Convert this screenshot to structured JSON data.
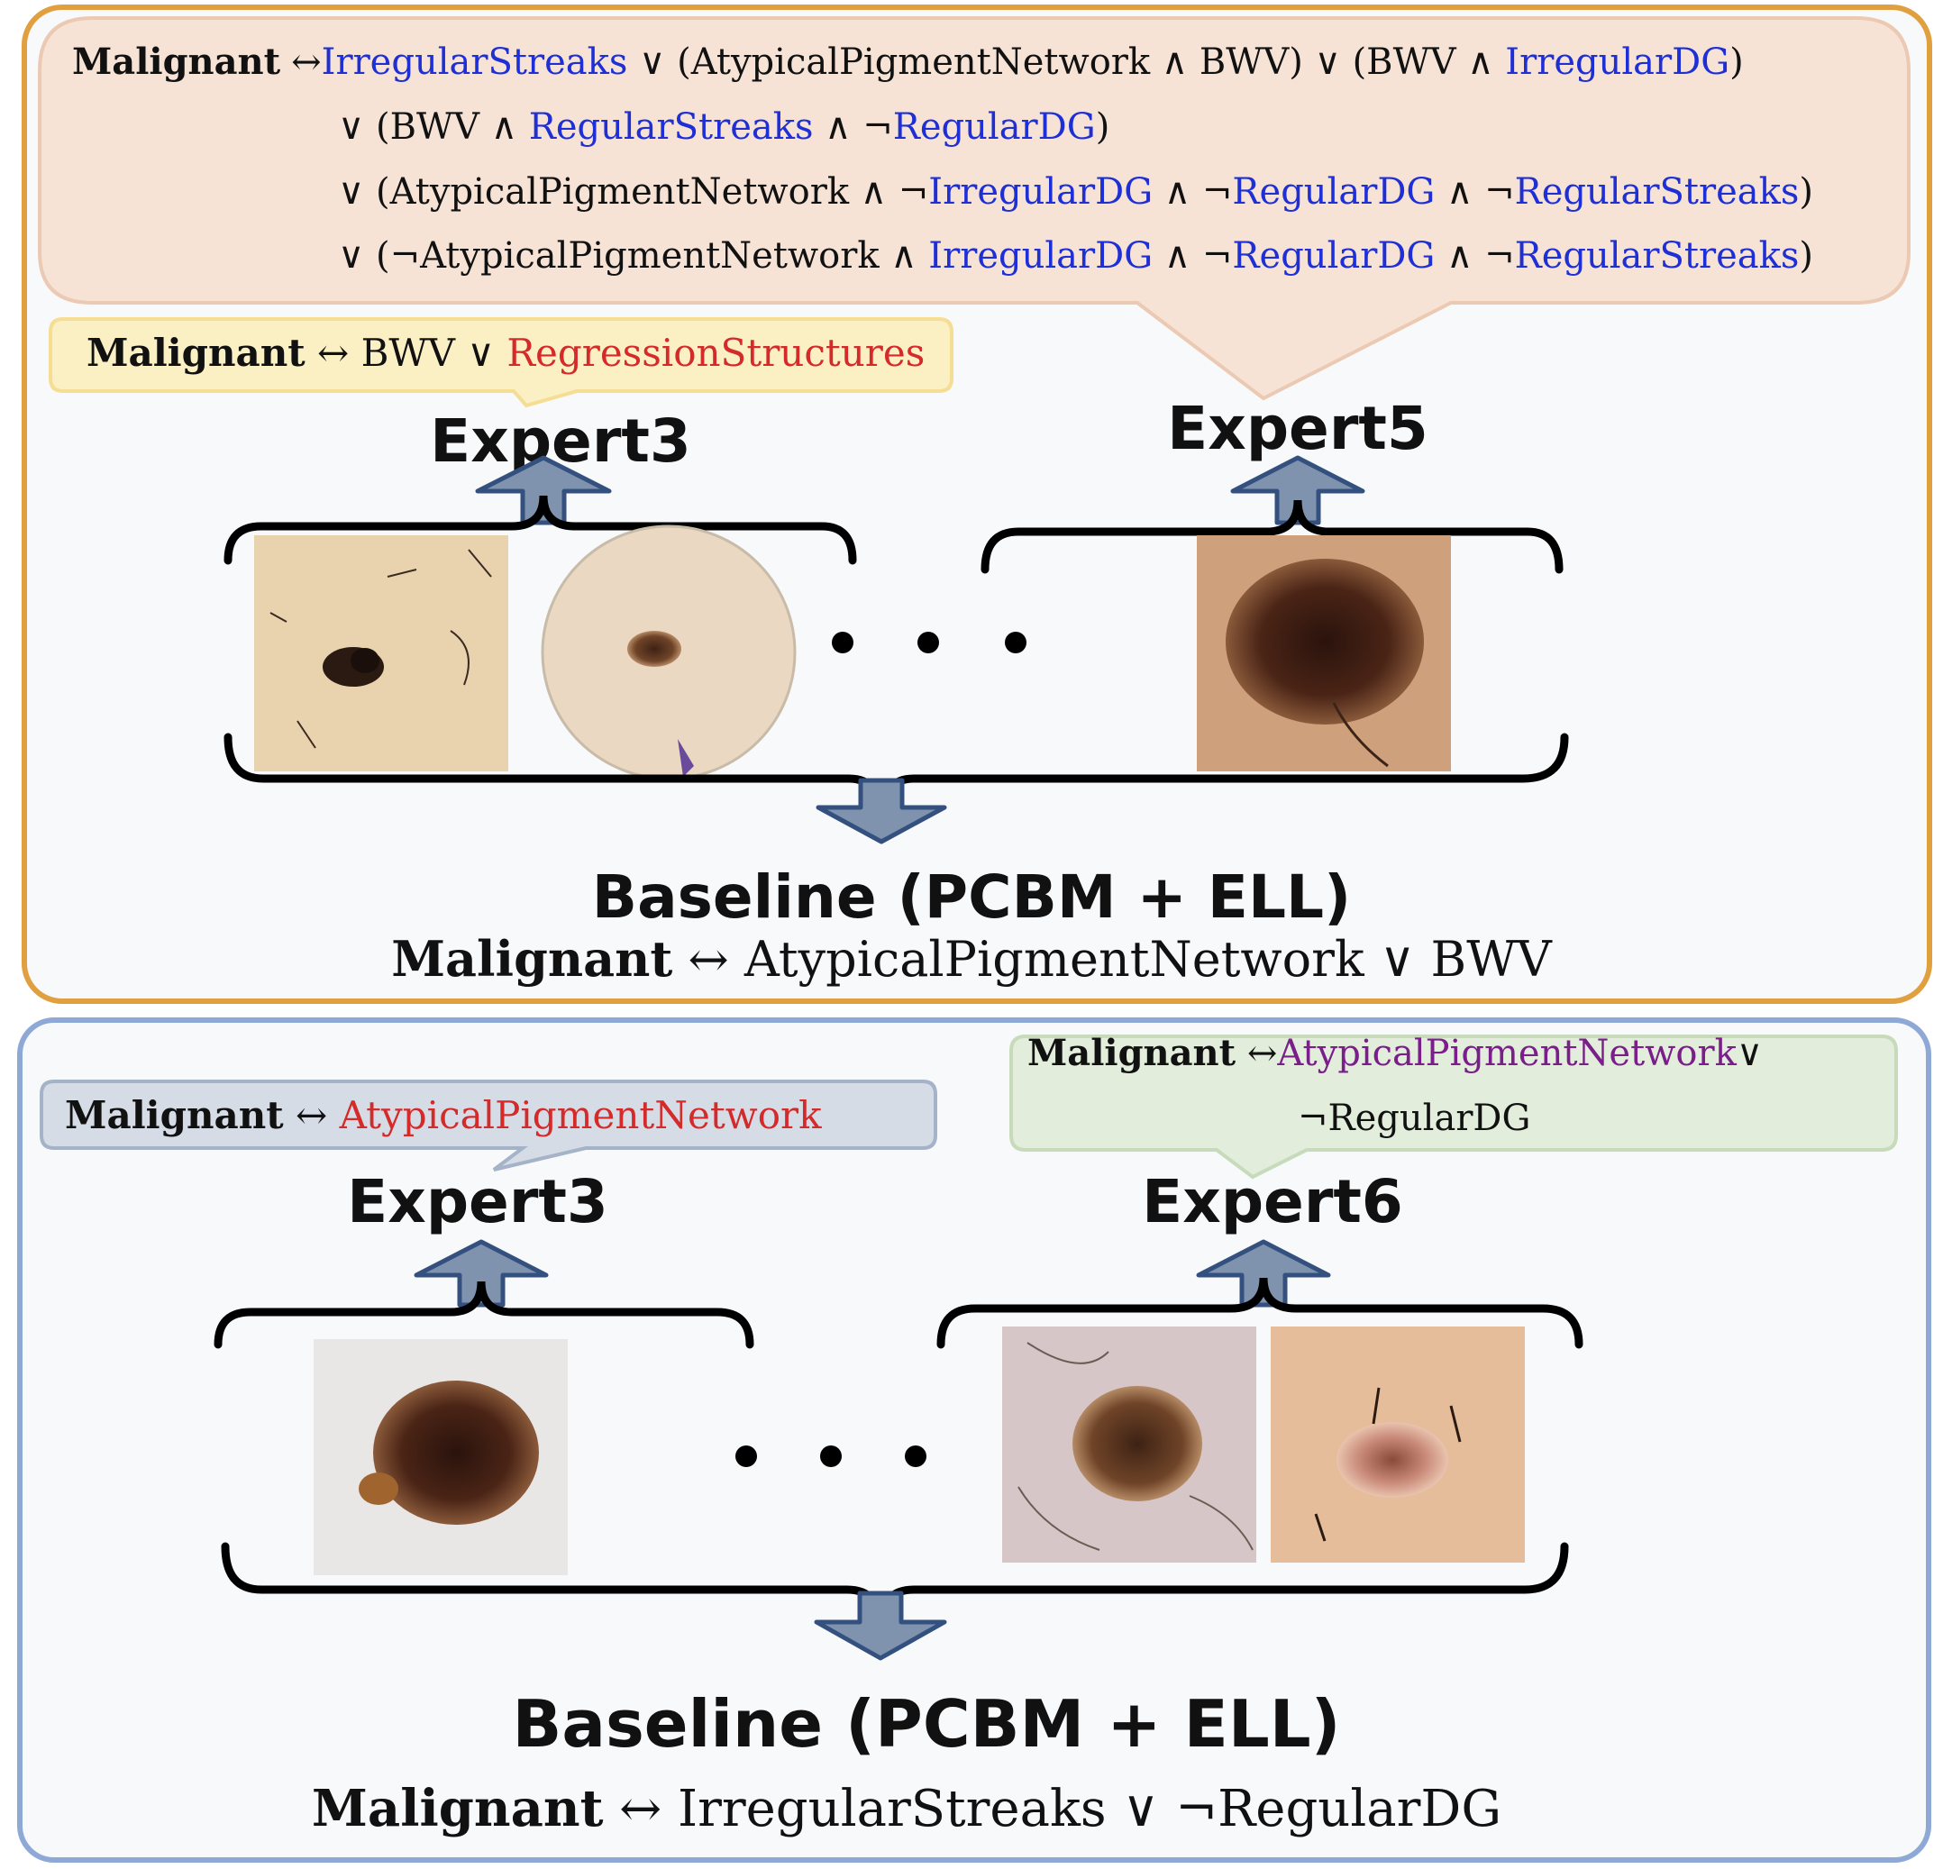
{
  "colors": {
    "top_panel_border": "#e0a040",
    "bottom_panel_border": "#8fa9d6",
    "panel_fill": "#f8f9fb",
    "expert5_bubble": "#f6e3d6",
    "expert3_top_bubble": "#fbefc4",
    "expert3_bottom_bubble": "#d6dce6",
    "expert6_bubble": "#e2eddc",
    "arrow_fill": "#7f93ae",
    "arrow_stroke": "#34507f",
    "concept_blue": "#1f2fd6",
    "concept_red": "#d42a2a",
    "concept_purple": "#7a1f8a"
  },
  "top": {
    "expert5_rule": {
      "line1": {
        "malignant": "Malignant",
        "iff": "↔",
        "c1": "IrregularStreaks",
        "t1": " ∨ (AtypicalPigmentNetwork ∧ BWV) ∨ (BWV ∧ ",
        "c2": "IrregularDG",
        "t2": ")"
      },
      "line2": {
        "t1": "∨ (BWV ∧ ",
        "c1": "RegularStreaks",
        "t2": " ∧ ¬",
        "c2": "RegularDG",
        "t3": ")"
      },
      "line3": {
        "t1": "∨ (AtypicalPigmentNetwork ∧ ¬",
        "c1": "IrregularDG",
        "t2": " ∧ ¬",
        "c2": "RegularDG",
        "t3": " ∧ ¬",
        "c3": "RegularStreaks",
        "t4": ")"
      },
      "line4": {
        "t1": "∨ (¬AtypicalPigmentNetwork ∧ ",
        "c1": "IrregularDG",
        "t2": " ∧ ¬",
        "c2": "RegularDG",
        "t3": " ∧ ¬",
        "c3": "RegularStreaks",
        "t4": ")"
      }
    },
    "expert3_rule": {
      "malignant": "Malignant",
      "t1": " ↔ BWV ∨ ",
      "c1": "RegressionStructures"
    },
    "expert3_label": "Expert3",
    "expert5_label": "Expert5",
    "ellipsis": "• • •",
    "baseline_title": "Baseline (PCBM + ELL)",
    "baseline_rule": {
      "malignant": "Malignant",
      "t1": " ↔ AtypicalPigmentNetwork ∨ BWV"
    }
  },
  "bottom": {
    "expert3_rule": {
      "malignant": "Malignant",
      "t1": " ↔ ",
      "c1": "AtypicalPigmentNetwork"
    },
    "expert6_rule": {
      "malignant": "Malignant",
      "t1": " ↔",
      "c1": "AtypicalPigmentNetwork",
      "t2": "∨",
      "line2": "¬RegularDG"
    },
    "expert3_label": "Expert3",
    "expert6_label": "Expert6",
    "ellipsis": "• • •",
    "baseline_title": "Baseline (PCBM + ELL)",
    "baseline_rule": {
      "malignant": "Malignant",
      "t1": " ↔ IrregularStreaks ∨ ¬RegularDG"
    }
  }
}
